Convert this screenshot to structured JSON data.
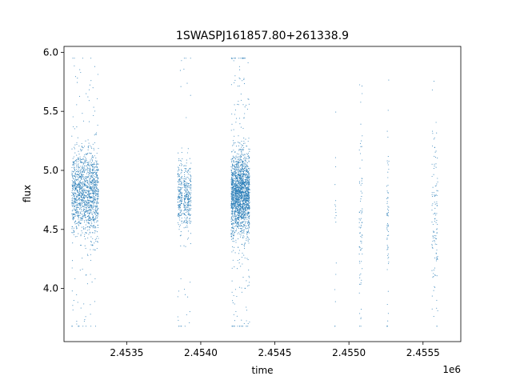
{
  "chart_data": {
    "type": "scatter",
    "title": "1SWASPJ161857.80+261338.9",
    "xlabel": "time",
    "ylabel": "flux",
    "x_offset_label": "1e6",
    "xlim": [
      2453077,
      2455755
    ],
    "ylim": [
      3.55,
      6.05
    ],
    "x_ticks": [
      2453500,
      2454000,
      2454500,
      2455000,
      2455500
    ],
    "x_tick_labels": [
      "2.4535",
      "2.4540",
      "2.4545",
      "2.4550",
      "2.4555"
    ],
    "y_ticks": [
      4.0,
      4.5,
      5.0,
      5.5,
      6.0
    ],
    "y_tick_labels": [
      "4.0",
      "4.5",
      "5.0",
      "5.5",
      "6.0"
    ],
    "grid": false,
    "legend": "none",
    "marker_color": "#1f77b4",
    "series": [
      {
        "clusters": [
          {
            "x_range": [
              2453130,
              2453310
            ],
            "y_center": 4.8,
            "y_spread": 0.18,
            "points": 1400,
            "outliers": 70
          },
          {
            "x_range": [
              2453845,
              2453875
            ],
            "y_center": 4.8,
            "y_spread": 0.15,
            "points": 180,
            "outliers": 12
          },
          {
            "x_range": [
              2453885,
              2453935
            ],
            "y_center": 4.75,
            "y_spread": 0.16,
            "points": 280,
            "outliers": 15
          },
          {
            "x_range": [
              2454205,
              2454235
            ],
            "y_center": 4.78,
            "y_spread": 0.18,
            "points": 450,
            "outliers": 30
          },
          {
            "x_range": [
              2454235,
              2454330
            ],
            "y_center": 4.8,
            "y_spread": 0.18,
            "points": 1500,
            "outliers": 80
          },
          {
            "x_range": [
              2454905,
              2454915
            ],
            "y_center": 4.6,
            "y_spread": 0.3,
            "points": 15,
            "outliers": 3
          },
          {
            "x_range": [
              2455070,
              2455090
            ],
            "y_center": 4.5,
            "y_spread": 0.35,
            "points": 70,
            "outliers": 8
          },
          {
            "x_range": [
              2455255,
              2455270
            ],
            "y_center": 4.6,
            "y_spread": 0.35,
            "points": 60,
            "outliers": 6
          },
          {
            "x_range": [
              2455560,
              2455600
            ],
            "y_center": 4.5,
            "y_spread": 0.35,
            "points": 110,
            "outliers": 10
          }
        ]
      }
    ]
  }
}
